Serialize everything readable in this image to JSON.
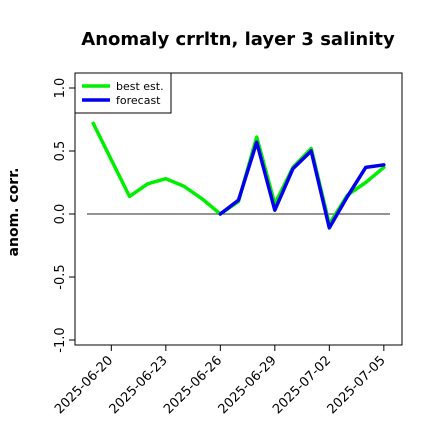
{
  "chart_data": {
    "type": "line",
    "title": "Anomaly crrltn, layer 3 salinity",
    "ylabel": "anom. corr.",
    "xlabel": "",
    "ylim": [
      -1.0,
      1.0
    ],
    "yticks": [
      -1.0,
      -0.5,
      0.0,
      0.5,
      1.0
    ],
    "ytick_labels": [
      "-1.0",
      "-0.5",
      "0.0",
      "0.5",
      "1.0"
    ],
    "xlim": [
      "2025-06-18",
      "2025-07-06"
    ],
    "xticks": [
      "2025-06-20",
      "2025-06-23",
      "2025-06-26",
      "2025-06-29",
      "2025-07-02",
      "2025-07-05"
    ],
    "highlight_tick": "2025-06-26",
    "highlight_color": "#228b22",
    "hline": 0.0,
    "grid": false,
    "legend_position": "top-left",
    "series": [
      {
        "name": "best est.",
        "color": "#00ee00",
        "x": [
          "2025-06-19",
          "2025-06-20",
          "2025-06-21",
          "2025-06-22",
          "2025-06-23",
          "2025-06-24",
          "2025-06-25",
          "2025-06-26",
          "2025-06-27",
          "2025-06-28",
          "2025-06-29",
          "2025-06-30",
          "2025-07-01",
          "2025-07-02",
          "2025-07-03",
          "2025-07-04",
          "2025-07-05"
        ],
        "values": [
          0.72,
          0.43,
          0.14,
          0.24,
          0.28,
          0.22,
          0.12,
          0.0,
          0.1,
          0.61,
          0.08,
          0.37,
          0.52,
          -0.08,
          0.15,
          0.25,
          0.37
        ]
      },
      {
        "name": "forecast",
        "color": "#0000ee",
        "x": [
          "2025-06-26",
          "2025-06-27",
          "2025-06-28",
          "2025-06-29",
          "2025-06-30",
          "2025-07-01",
          "2025-07-02",
          "2025-07-03",
          "2025-07-04",
          "2025-07-05"
        ],
        "values": [
          0.0,
          0.11,
          0.57,
          0.03,
          0.36,
          0.5,
          -0.11,
          0.14,
          0.37,
          0.39
        ]
      }
    ]
  }
}
